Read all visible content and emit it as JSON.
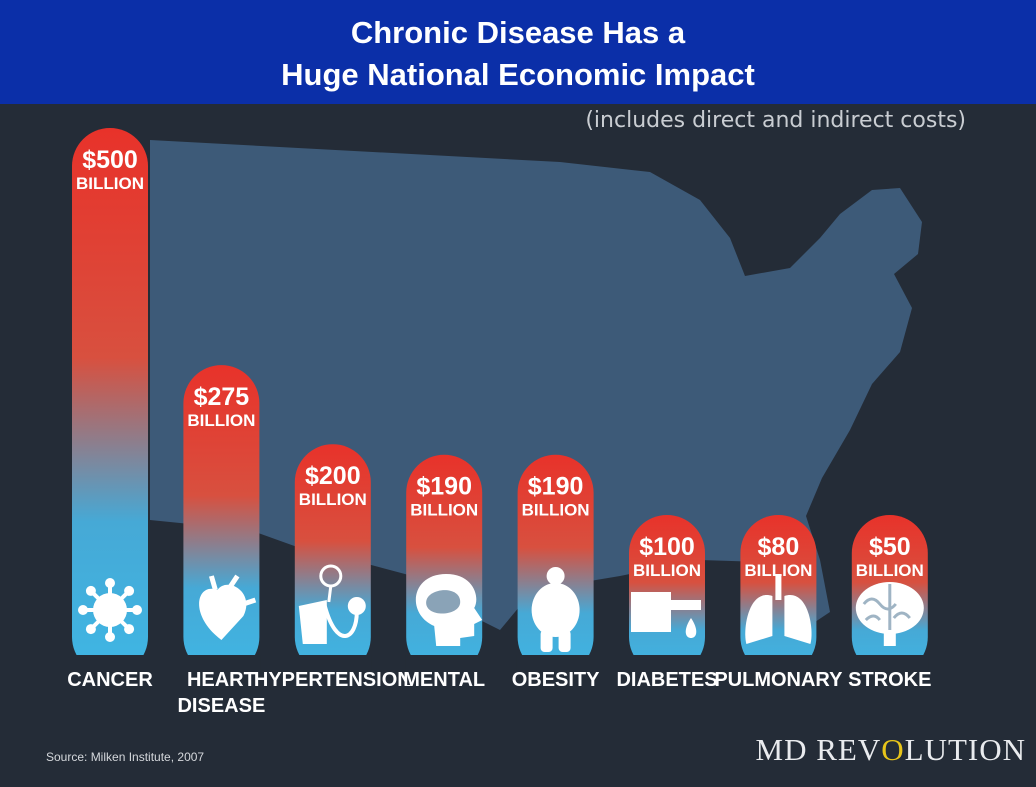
{
  "header": {
    "title_line1": "Chronic Disease Has a",
    "title_line2": "Huge National Economic Impact",
    "subtitle": "(includes direct and indirect costs)"
  },
  "footer": {
    "source": "Source: Milken Institute, 2007",
    "brand_before": "MD REV",
    "brand_o": "O",
    "brand_after": "LUTION"
  },
  "colors": {
    "banner": "#0b2fa8",
    "background": "#242c37",
    "map": "#3d5a78",
    "bar_top": "#e8322a",
    "bar_bottom": "#3fb6e4"
  },
  "chart_data": {
    "type": "bar",
    "categories": [
      "CANCER",
      "HEART DISEASE",
      "HYPERTENSION",
      "MENTAL",
      "OBESITY",
      "DIABETES",
      "PULMONARY",
      "STROKE"
    ],
    "category_lines": [
      [
        "CANCER"
      ],
      [
        "HEART",
        "DISEASE"
      ],
      [
        "HYPERTENSION"
      ],
      [
        "MENTAL"
      ],
      [
        "OBESITY"
      ],
      [
        "DIABETES"
      ],
      [
        "PULMONARY"
      ],
      [
        "STROKE"
      ]
    ],
    "values": [
      500,
      275,
      200,
      190,
      190,
      100,
      80,
      50
    ],
    "value_labels": [
      "$500",
      "$275",
      "$200",
      "$190",
      "$190",
      "$100",
      "$80",
      "$50"
    ],
    "unit_label": "BILLION",
    "icons": [
      "virus-icon",
      "heart-icon",
      "blood-pressure-icon",
      "head-brain-icon",
      "person-icon",
      "finger-drop-icon",
      "lungs-icon",
      "brain-icon"
    ],
    "title": "",
    "xlabel": "",
    "ylabel": ""
  }
}
